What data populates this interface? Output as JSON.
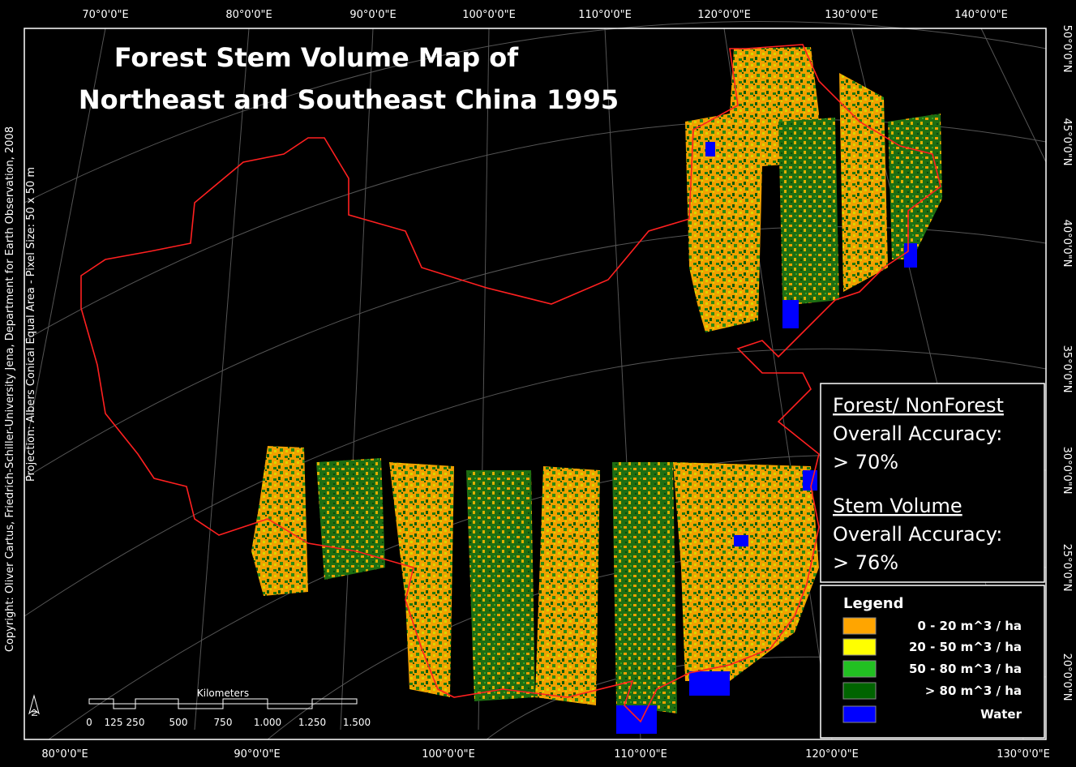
{
  "title": {
    "lines": [
      "Forest Stem Volume Map of",
      "Northeast and Southeast China 1995"
    ]
  },
  "graticule": {
    "top_labels": [
      "70°0'0\"E",
      "80°0'0\"E",
      "90°0'0\"E",
      "100°0'0\"E",
      "110°0'0\"E",
      "120°0'0\"E",
      "130°0'0\"E",
      "140°0'0\"E"
    ],
    "bottom_labels": [
      "80°0'0\"E",
      "90°0'0\"E",
      "100°0'0\"E",
      "110°0'0\"E",
      "120°0'0\"E",
      "130°0'0\"E"
    ],
    "right_labels": [
      "50°0'0\"N",
      "45°0'0\"N",
      "40°0'0\"N",
      "35°0'0\"N",
      "30°0'0\"N",
      "25°0'0\"N",
      "20°0'0\"N"
    ]
  },
  "credits": [
    "Copyright: Oliver Cartus, Friedrich-Schiller-University Jena, Department for Earth Observation, 2008",
    "Projection: Albers Conical Equal Area - Pixel Size: 50 x 50 m"
  ],
  "accuracy": {
    "sections": [
      {
        "heading": "Forest/ NonForest",
        "label": "Overall Accuracy:",
        "value": "> 70%"
      },
      {
        "heading": "Stem Volume",
        "label": "Overall Accuracy:",
        "value": "> 76%"
      }
    ]
  },
  "legend": {
    "title": "Legend",
    "items": [
      {
        "label": "0 - 20 m^3 / ha",
        "color": "#ffa500"
      },
      {
        "label": "20 - 50 m^3 / ha",
        "color": "#ffff00"
      },
      {
        "label": "50 - 80 m^3 / ha",
        "color": "#22c022"
      },
      {
        "label": "> 80 m^3 / ha",
        "color": "#006400"
      },
      {
        "label": "Water",
        "color": "#0000ff"
      }
    ]
  },
  "scale_bar": {
    "title": "Kilometers",
    "labels": [
      "0",
      "125",
      "250",
      "500",
      "750",
      "1.000",
      "1.250",
      "1.500"
    ]
  },
  "north_arrow": "N"
}
